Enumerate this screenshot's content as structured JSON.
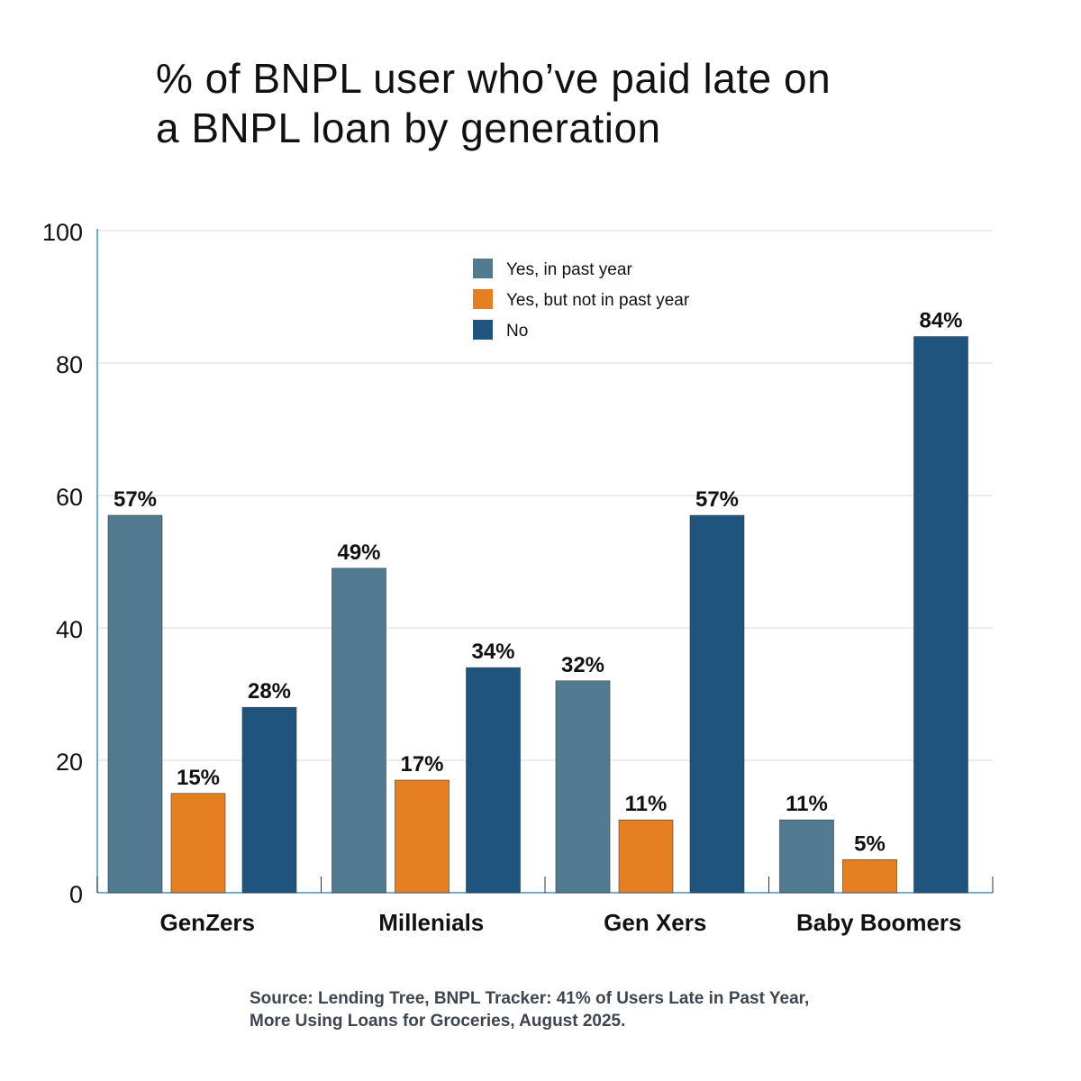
{
  "chart_data": {
    "type": "bar",
    "title_lines": [
      "% of BNPL user who’ve paid late on",
      "a BNPL loan by generation"
    ],
    "categories": [
      "GenZers",
      "Millenials",
      "Gen Xers",
      "Baby Boomers"
    ],
    "series": [
      {
        "name": "Yes, in past year",
        "color": "#527a91",
        "values": [
          57,
          49,
          32,
          11
        ]
      },
      {
        "name": "Yes, but not in past year",
        "color": "#e67e22",
        "values": [
          15,
          17,
          11,
          5
        ]
      },
      {
        "name": "No",
        "color": "#1f547f",
        "values": [
          28,
          34,
          57,
          84
        ]
      }
    ],
    "value_suffix": "%",
    "ylim": [
      0,
      100
    ],
    "yticks": [
      0,
      20,
      40,
      60,
      80,
      100
    ],
    "xlabel": "",
    "ylabel": "",
    "grid": true,
    "legend_position": "top-center"
  },
  "source_lines": [
    "Source: Lending Tree, BNPL Tracker: 41% of Users Late in Past Year,",
    "More Using Loans for Groceries, August 2025."
  ]
}
